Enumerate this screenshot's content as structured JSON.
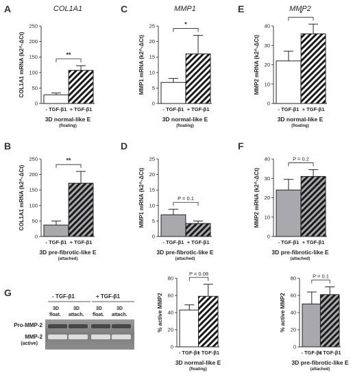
{
  "chart_data": [
    {
      "panel": "A",
      "type": "bar",
      "title": "COL1A1",
      "ylabel": "COL1A1 mRNA (k2^-ΔCt)",
      "ylim": [
        0,
        250
      ],
      "yticks": [
        0,
        50,
        100,
        150,
        200,
        250
      ],
      "categories": [
        "- TGF-β1",
        "+ TGF-β1"
      ],
      "values": [
        28,
        107
      ],
      "errors": [
        6,
        15
      ],
      "bar_styles": [
        "white",
        "hatched-white"
      ],
      "significance": "**",
      "condition": "3D normal-like E",
      "condition_sub": "(floating)"
    },
    {
      "panel": "C",
      "type": "bar",
      "title": "MMP1",
      "ylabel": "MMP1 mRNA (k2^-ΔCt)",
      "ylim": [
        0,
        25
      ],
      "yticks": [
        0,
        5,
        10,
        15,
        20,
        25
      ],
      "categories": [
        "- TGF-β1",
        "+ TGF-β1"
      ],
      "values": [
        6.8,
        16
      ],
      "errors": [
        1.3,
        6
      ],
      "bar_styles": [
        "white",
        "hatched-white"
      ],
      "significance": "*",
      "condition": "3D normal-like E",
      "condition_sub": "(floating)"
    },
    {
      "panel": "E",
      "type": "bar",
      "title": "MMP2",
      "ylabel": "MMP2 mRNA (k2^-ΔCt)",
      "ylim": [
        0,
        40
      ],
      "yticks": [
        0,
        10,
        20,
        30,
        40
      ],
      "categories": [
        "- TGF-β1",
        "+ TGF-β1"
      ],
      "values": [
        22,
        36
      ],
      "errors": [
        5,
        5
      ],
      "bar_styles": [
        "white",
        "hatched-white"
      ],
      "significance": "*",
      "condition": "3D normal-like E",
      "condition_sub": "(floating)"
    },
    {
      "panel": "B",
      "type": "bar",
      "title": "",
      "ylabel": "COL1A1 mRNA (k2^-ΔCt)",
      "ylim": [
        0,
        250
      ],
      "yticks": [
        0,
        50,
        100,
        150,
        200,
        250
      ],
      "categories": [
        "- TGF-β1",
        "+ TGF-β1"
      ],
      "values": [
        37,
        172
      ],
      "errors": [
        13,
        38
      ],
      "bar_styles": [
        "gray",
        "hatched-gray"
      ],
      "significance": "**",
      "condition": "3D pre-fibrotic-like E",
      "condition_sub": "(attached)"
    },
    {
      "panel": "D",
      "type": "bar",
      "title": "",
      "ylabel": "MMP1 mRNA (k2^-ΔCt)",
      "ylim": [
        0,
        25
      ],
      "yticks": [
        0,
        5,
        10,
        15,
        20,
        25
      ],
      "categories": [
        "- TGF-β1",
        "+ TGF-β1"
      ],
      "values": [
        7,
        4.2
      ],
      "errors": [
        1.8,
        0.8
      ],
      "bar_styles": [
        "gray",
        "hatched-gray"
      ],
      "significance": "P = 0.1",
      "condition": "3D pre-fibrotic-like E",
      "condition_sub": "(attached)"
    },
    {
      "panel": "F",
      "type": "bar",
      "title": "",
      "ylabel": "MMP2 mRNA (k2^-ΔCt)",
      "ylim": [
        0,
        40
      ],
      "yticks": [
        0,
        10,
        20,
        30,
        40
      ],
      "categories": [
        "- TGF-β1",
        "+ TGF-β1"
      ],
      "values": [
        24,
        31
      ],
      "errors": [
        5.5,
        3.5
      ],
      "bar_styles": [
        "gray",
        "hatched-gray"
      ],
      "significance": "P = 0.2",
      "condition": "3D pre-fibrotic-like E",
      "condition_sub": "(attached)"
    },
    {
      "panel": "G1",
      "type": "bar",
      "title": "",
      "ylabel": "% active MMP2",
      "ylim": [
        0,
        80
      ],
      "yticks": [
        0,
        20,
        40,
        60,
        80
      ],
      "categories": [
        "- TGF-β1",
        "+ TGF-β1"
      ],
      "values": [
        43,
        59
      ],
      "errors": [
        6,
        14
      ],
      "bar_styles": [
        "white",
        "hatched-white"
      ],
      "significance": "P = 0.08",
      "condition": "3D normal-like E",
      "condition_sub": "(floating)"
    },
    {
      "panel": "G2",
      "type": "bar",
      "title": "",
      "ylabel": "% active MMP2",
      "ylim": [
        0,
        80
      ],
      "yticks": [
        0,
        20,
        40,
        60,
        80
      ],
      "categories": [
        "- TGF-β1",
        "+ TGF-β1"
      ],
      "values": [
        50,
        61
      ],
      "errors": [
        14,
        9
      ],
      "bar_styles": [
        "gray",
        "hatched-gray"
      ],
      "significance": "P = 0.1",
      "condition": "3D pre-fibrotic-like E",
      "condition_sub": "(attached)"
    }
  ],
  "gel": {
    "panel": "G",
    "group_labels": [
      "- TGF-β1",
      "+ TGF-β1"
    ],
    "lane_labels": [
      [
        "3D",
        "float."
      ],
      [
        "3D",
        "attach."
      ],
      [
        "3D",
        "float."
      ],
      [
        "3D",
        "attach."
      ]
    ],
    "band_labels": [
      "Pro-MMP-2",
      "MMP-2",
      "(active)"
    ]
  },
  "panel_letters": {
    "A": "A",
    "C": "C",
    "E": "E",
    "B": "B",
    "D": "D",
    "F": "F",
    "G": "G"
  },
  "colors": {
    "gray_bar": "#a8a8ad",
    "white_bar": "#ffffff",
    "stroke": "#222222",
    "gel_bg": "#8c8c8c"
  }
}
